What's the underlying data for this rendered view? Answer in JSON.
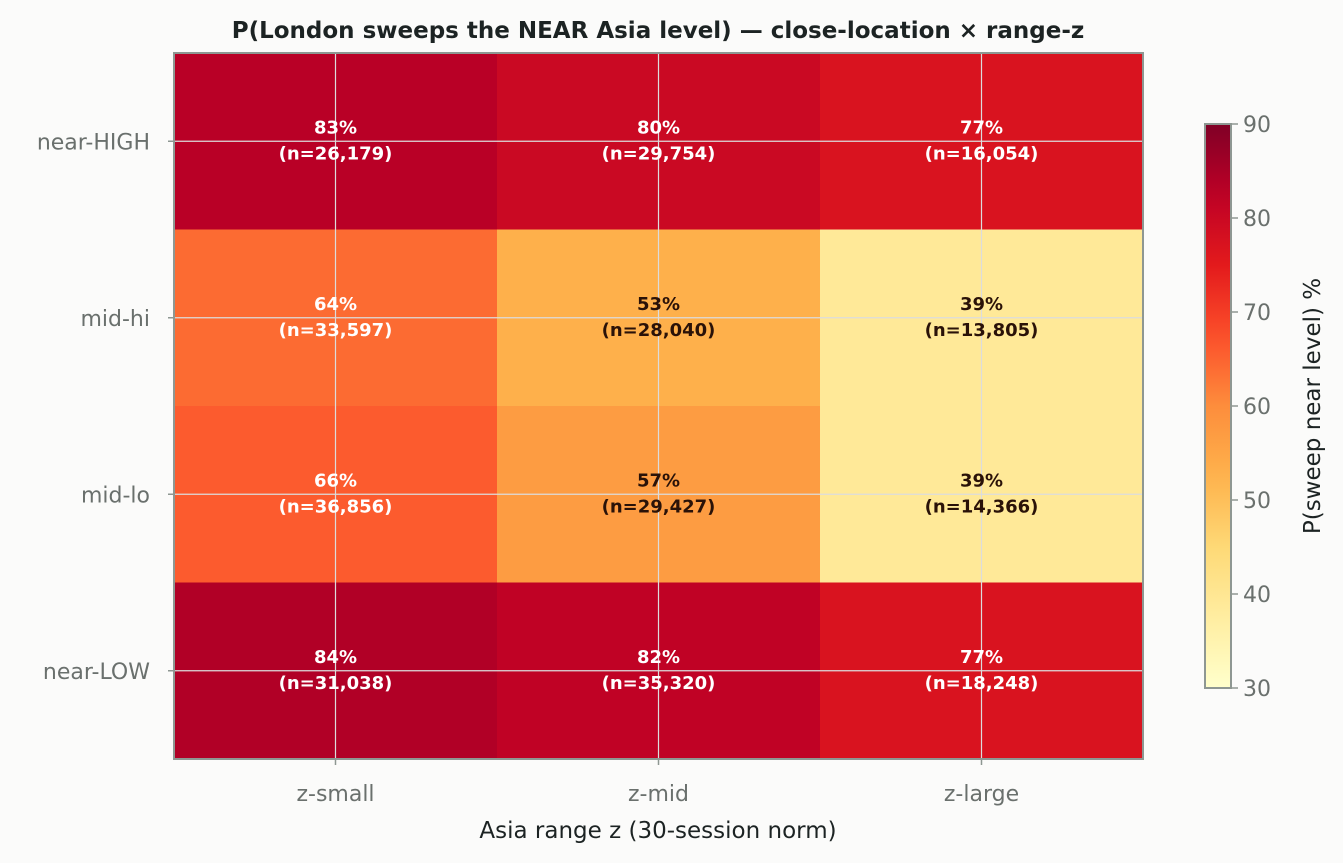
{
  "chart_data": {
    "type": "heatmap",
    "title": "P(London sweeps the NEAR Asia level) — close-location × range-z",
    "xlabel": "Asia range z (30-session norm)",
    "ylabel": "",
    "x_categories": [
      "z-small",
      "z-mid",
      "z-large"
    ],
    "y_categories": [
      "near-HIGH",
      "mid-hi",
      "mid-lo",
      "near-LOW"
    ],
    "values": [
      [
        83,
        80,
        77
      ],
      [
        64,
        53,
        39
      ],
      [
        66,
        57,
        39
      ],
      [
        84,
        82,
        77
      ]
    ],
    "cell_labels": [
      [
        {
          "pct": "83%",
          "n": "(n=26,179)"
        },
        {
          "pct": "80%",
          "n": "(n=29,754)"
        },
        {
          "pct": "77%",
          "n": "(n=16,054)"
        }
      ],
      [
        {
          "pct": "64%",
          "n": "(n=33,597)"
        },
        {
          "pct": "53%",
          "n": "(n=28,040)"
        },
        {
          "pct": "39%",
          "n": "(n=13,805)"
        }
      ],
      [
        {
          "pct": "66%",
          "n": "(n=36,856)"
        },
        {
          "pct": "57%",
          "n": "(n=29,427)"
        },
        {
          "pct": "39%",
          "n": "(n=14,366)"
        }
      ],
      [
        {
          "pct": "84%",
          "n": "(n=31,038)"
        },
        {
          "pct": "82%",
          "n": "(n=35,320)"
        },
        {
          "pct": "77%",
          "n": "(n=18,248)"
        }
      ]
    ],
    "colorbar": {
      "label": "P(sweep near level) %",
      "range": [
        30,
        90
      ],
      "ticks": [
        "30",
        "40",
        "50",
        "60",
        "70",
        "80",
        "90"
      ],
      "colormap": "YlOrRd"
    },
    "grid": true,
    "colors": {
      "background": "#fbfbfa",
      "frame": "#8e9792",
      "grid": "#dcdcdc",
      "label_light": "#ffffff",
      "label_dark": "#2a1208"
    }
  }
}
